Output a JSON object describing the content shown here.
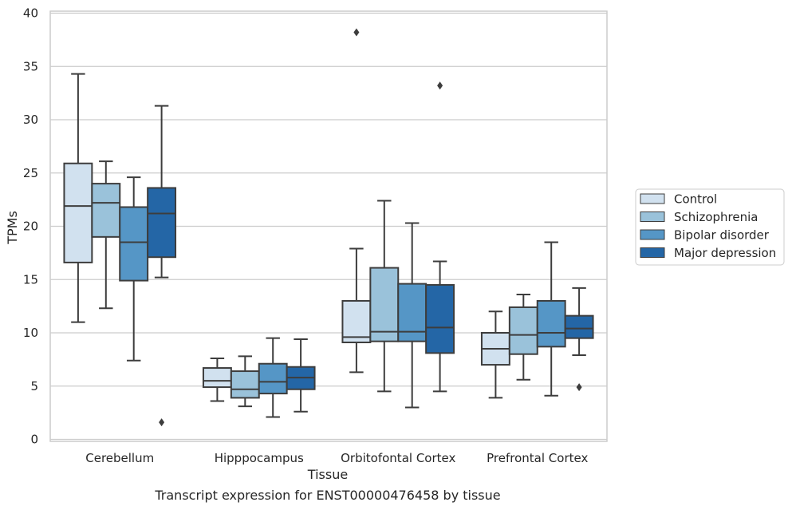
{
  "chart_data": {
    "type": "boxplot",
    "title": "",
    "caption": "Transcript expression for ENST00000476458 by tissue",
    "xlabel": "Tissue",
    "ylabel": "TPMs",
    "ylim": [
      0,
      40
    ],
    "yticks": [
      0,
      5,
      10,
      15,
      20,
      25,
      30,
      35,
      40
    ],
    "grid": "horizontal",
    "legend_position": "right",
    "categories": [
      "Cerebellum",
      "Hipppocampus",
      "Orbitofontal Cortex",
      "Prefrontal Cortex"
    ],
    "series": [
      {
        "name": "Control",
        "color": "#d1e1ef",
        "boxes": [
          {
            "whisker_low": 11.0,
            "q1": 16.6,
            "median": 21.9,
            "q3": 25.9,
            "whisker_high": 34.3,
            "outliers": []
          },
          {
            "whisker_low": 3.6,
            "q1": 4.9,
            "median": 5.5,
            "q3": 6.7,
            "whisker_high": 7.6,
            "outliers": []
          },
          {
            "whisker_low": 6.3,
            "q1": 9.1,
            "median": 9.6,
            "q3": 13.0,
            "whisker_high": 17.9,
            "outliers": [
              38.2
            ]
          },
          {
            "whisker_low": 3.9,
            "q1": 7.0,
            "median": 8.5,
            "q3": 10.0,
            "whisker_high": 12.0,
            "outliers": []
          }
        ]
      },
      {
        "name": "Schizophrenia",
        "color": "#9ac2da",
        "boxes": [
          {
            "whisker_low": 12.3,
            "q1": 19.0,
            "median": 22.2,
            "q3": 24.0,
            "whisker_high": 26.1,
            "outliers": []
          },
          {
            "whisker_low": 3.1,
            "q1": 3.9,
            "median": 4.7,
            "q3": 6.4,
            "whisker_high": 7.8,
            "outliers": []
          },
          {
            "whisker_low": 4.5,
            "q1": 9.2,
            "median": 10.1,
            "q3": 16.1,
            "whisker_high": 22.4,
            "outliers": []
          },
          {
            "whisker_low": 5.6,
            "q1": 8.0,
            "median": 9.8,
            "q3": 12.4,
            "whisker_high": 13.6,
            "outliers": []
          }
        ]
      },
      {
        "name": "Bipolar disorder",
        "color": "#5596c6",
        "boxes": [
          {
            "whisker_low": 7.4,
            "q1": 14.9,
            "median": 18.5,
            "q3": 21.8,
            "whisker_high": 24.6,
            "outliers": []
          },
          {
            "whisker_low": 2.1,
            "q1": 4.3,
            "median": 5.4,
            "q3": 7.1,
            "whisker_high": 9.5,
            "outliers": []
          },
          {
            "whisker_low": 3.0,
            "q1": 9.2,
            "median": 10.1,
            "q3": 14.6,
            "whisker_high": 20.3,
            "outliers": []
          },
          {
            "whisker_low": 4.1,
            "q1": 8.7,
            "median": 10.0,
            "q3": 13.0,
            "whisker_high": 18.5,
            "outliers": []
          }
        ]
      },
      {
        "name": "Major depression",
        "color": "#2466a6",
        "boxes": [
          {
            "whisker_low": 15.2,
            "q1": 17.1,
            "median": 21.2,
            "q3": 23.6,
            "whisker_high": 31.3,
            "outliers": [
              1.6
            ]
          },
          {
            "whisker_low": 2.6,
            "q1": 4.7,
            "median": 5.8,
            "q3": 6.8,
            "whisker_high": 9.4,
            "outliers": []
          },
          {
            "whisker_low": 4.5,
            "q1": 8.1,
            "median": 10.5,
            "q3": 14.5,
            "whisker_high": 16.7,
            "outliers": [
              33.2
            ]
          },
          {
            "whisker_low": 7.9,
            "q1": 9.5,
            "median": 10.4,
            "q3": 11.6,
            "whisker_high": 14.2,
            "outliers": [
              4.9
            ]
          }
        ]
      }
    ]
  },
  "colors": {
    "box_edge": "#3d3d3d",
    "grid": "#cccccc",
    "frame": "#cccccc"
  }
}
